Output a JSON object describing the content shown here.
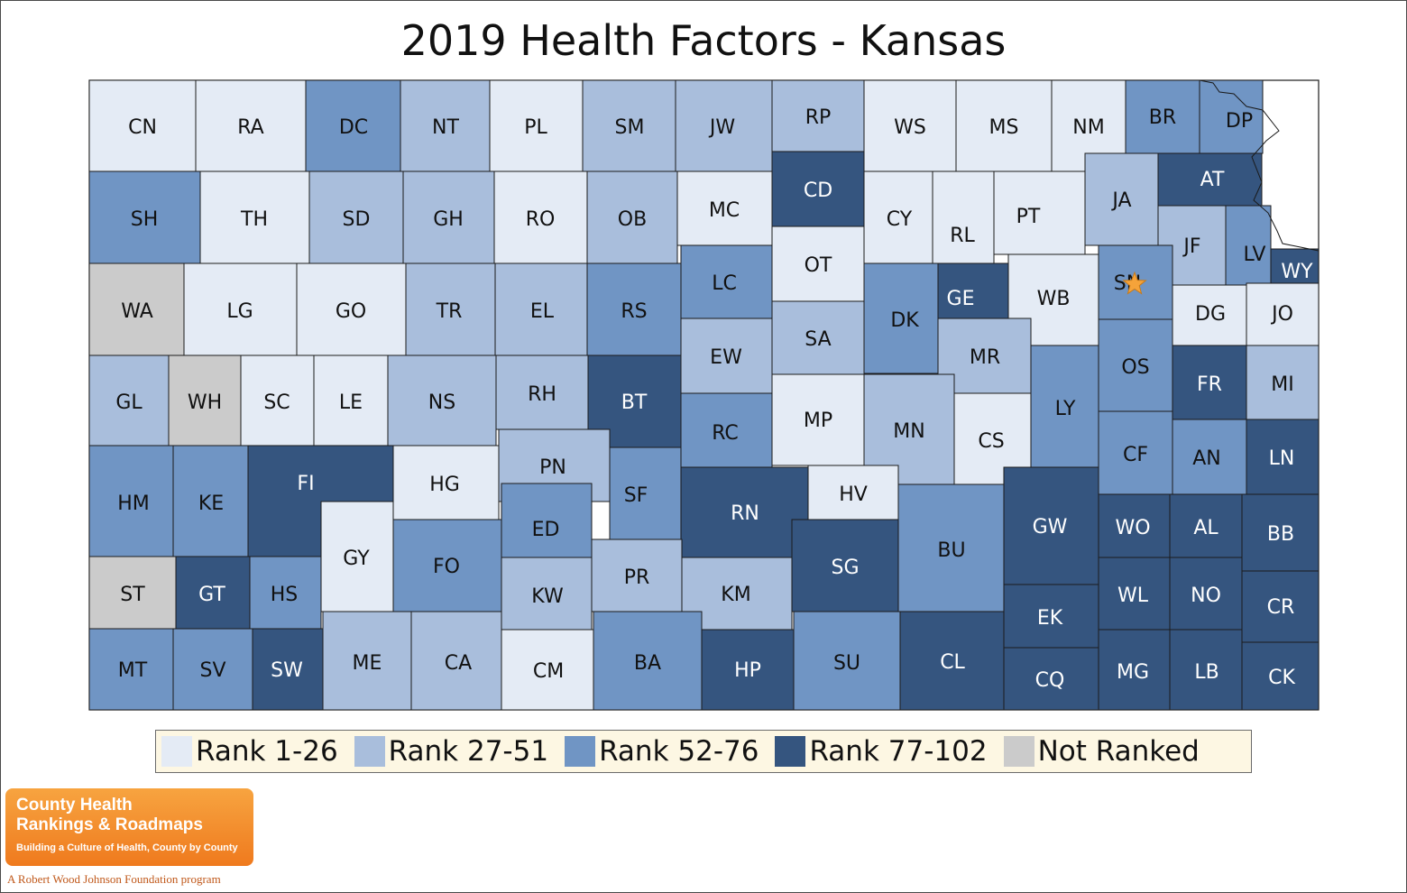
{
  "title": "2019 Health Factors - Kansas",
  "rank_colors": {
    "r1": "#e4ebf5",
    "r2": "#a9bedc",
    "r3": "#7095c4",
    "r4": "#35557f",
    "nr": "#cbcbcb"
  },
  "label_colors": {
    "light": "#111111",
    "dark": "#ffffff"
  },
  "legend": [
    {
      "key": "r1",
      "label": "Rank 1-26"
    },
    {
      "key": "r2",
      "label": "Rank 27-51"
    },
    {
      "key": "r3",
      "label": "Rank 52-76"
    },
    {
      "key": "r4",
      "label": "Rank 77-102"
    },
    {
      "key": "nr",
      "label": "Not Ranked"
    }
  ],
  "capital_marker": {
    "county": "SN",
    "color": "#f5a33a",
    "icon": "star-icon"
  },
  "counties": [
    {
      "id": "CN",
      "rank_group": "r1"
    },
    {
      "id": "RA",
      "rank_group": "r1"
    },
    {
      "id": "DC",
      "rank_group": "r3"
    },
    {
      "id": "NT",
      "rank_group": "r2"
    },
    {
      "id": "PL",
      "rank_group": "r1"
    },
    {
      "id": "SM",
      "rank_group": "r2"
    },
    {
      "id": "JW",
      "rank_group": "r2"
    },
    {
      "id": "RP",
      "rank_group": "r2"
    },
    {
      "id": "WS",
      "rank_group": "r1"
    },
    {
      "id": "MS",
      "rank_group": "r1"
    },
    {
      "id": "NM",
      "rank_group": "r1"
    },
    {
      "id": "BR",
      "rank_group": "r3"
    },
    {
      "id": "DP",
      "rank_group": "r3"
    },
    {
      "id": "SH",
      "rank_group": "r3"
    },
    {
      "id": "TH",
      "rank_group": "r1"
    },
    {
      "id": "SD",
      "rank_group": "r2"
    },
    {
      "id": "GH",
      "rank_group": "r2"
    },
    {
      "id": "RO",
      "rank_group": "r1"
    },
    {
      "id": "OB",
      "rank_group": "r2"
    },
    {
      "id": "MC",
      "rank_group": "r1"
    },
    {
      "id": "CD",
      "rank_group": "r4"
    },
    {
      "id": "CY",
      "rank_group": "r1"
    },
    {
      "id": "RL",
      "rank_group": "r1"
    },
    {
      "id": "PT",
      "rank_group": "r1"
    },
    {
      "id": "JA",
      "rank_group": "r2"
    },
    {
      "id": "AT",
      "rank_group": "r4"
    },
    {
      "id": "JF",
      "rank_group": "r2"
    },
    {
      "id": "LV",
      "rank_group": "r3"
    },
    {
      "id": "WY",
      "rank_group": "r4"
    },
    {
      "id": "WA",
      "rank_group": "nr"
    },
    {
      "id": "LG",
      "rank_group": "r1"
    },
    {
      "id": "GO",
      "rank_group": "r1"
    },
    {
      "id": "TR",
      "rank_group": "r2"
    },
    {
      "id": "EL",
      "rank_group": "r2"
    },
    {
      "id": "RS",
      "rank_group": "r3"
    },
    {
      "id": "LC",
      "rank_group": "r3"
    },
    {
      "id": "OT",
      "rank_group": "r1"
    },
    {
      "id": "DK",
      "rank_group": "r3"
    },
    {
      "id": "GE",
      "rank_group": "r4"
    },
    {
      "id": "WB",
      "rank_group": "r1"
    },
    {
      "id": "SN",
      "rank_group": "r3"
    },
    {
      "id": "DG",
      "rank_group": "r1"
    },
    {
      "id": "JO",
      "rank_group": "r1"
    },
    {
      "id": "GL",
      "rank_group": "r2"
    },
    {
      "id": "WH",
      "rank_group": "nr"
    },
    {
      "id": "SC",
      "rank_group": "r1"
    },
    {
      "id": "LE",
      "rank_group": "r1"
    },
    {
      "id": "NS",
      "rank_group": "r2"
    },
    {
      "id": "RH",
      "rank_group": "r2"
    },
    {
      "id": "BT",
      "rank_group": "r4"
    },
    {
      "id": "EW",
      "rank_group": "r2"
    },
    {
      "id": "SA",
      "rank_group": "r2"
    },
    {
      "id": "MR",
      "rank_group": "r2"
    },
    {
      "id": "OS",
      "rank_group": "r3"
    },
    {
      "id": "FR",
      "rank_group": "r4"
    },
    {
      "id": "MI",
      "rank_group": "r2"
    },
    {
      "id": "RC",
      "rank_group": "r3"
    },
    {
      "id": "MP",
      "rank_group": "r1"
    },
    {
      "id": "MN",
      "rank_group": "r2"
    },
    {
      "id": "LY",
      "rank_group": "r3"
    },
    {
      "id": "CS",
      "rank_group": "r1"
    },
    {
      "id": "CF",
      "rank_group": "r3"
    },
    {
      "id": "AN",
      "rank_group": "r3"
    },
    {
      "id": "LN",
      "rank_group": "r4"
    },
    {
      "id": "HM",
      "rank_group": "r3"
    },
    {
      "id": "KE",
      "rank_group": "r3"
    },
    {
      "id": "FI",
      "rank_group": "r4"
    },
    {
      "id": "HG",
      "rank_group": "r1"
    },
    {
      "id": "PN",
      "rank_group": "r2"
    },
    {
      "id": "SF",
      "rank_group": "r3"
    },
    {
      "id": "ED",
      "rank_group": "r3"
    },
    {
      "id": "RN",
      "rank_group": "r4"
    },
    {
      "id": "HV",
      "rank_group": "r1"
    },
    {
      "id": "BU",
      "rank_group": "r3"
    },
    {
      "id": "GW",
      "rank_group": "r4"
    },
    {
      "id": "WO",
      "rank_group": "r4"
    },
    {
      "id": "AL",
      "rank_group": "r4"
    },
    {
      "id": "BB",
      "rank_group": "r4"
    },
    {
      "id": "GY",
      "rank_group": "r1"
    },
    {
      "id": "FO",
      "rank_group": "r3"
    },
    {
      "id": "ST",
      "rank_group": "nr"
    },
    {
      "id": "GT",
      "rank_group": "r4"
    },
    {
      "id": "HS",
      "rank_group": "r3"
    },
    {
      "id": "KW",
      "rank_group": "r2"
    },
    {
      "id": "PR",
      "rank_group": "r2"
    },
    {
      "id": "KM",
      "rank_group": "r2"
    },
    {
      "id": "SG",
      "rank_group": "r4"
    },
    {
      "id": "EK",
      "rank_group": "r4"
    },
    {
      "id": "WL",
      "rank_group": "r4"
    },
    {
      "id": "NO",
      "rank_group": "r4"
    },
    {
      "id": "CR",
      "rank_group": "r4"
    },
    {
      "id": "MT",
      "rank_group": "r3"
    },
    {
      "id": "SV",
      "rank_group": "r3"
    },
    {
      "id": "SW",
      "rank_group": "r4"
    },
    {
      "id": "ME",
      "rank_group": "r2"
    },
    {
      "id": "CA",
      "rank_group": "r2"
    },
    {
      "id": "CM",
      "rank_group": "r1"
    },
    {
      "id": "BA",
      "rank_group": "r3"
    },
    {
      "id": "HP",
      "rank_group": "r4"
    },
    {
      "id": "SU",
      "rank_group": "r3"
    },
    {
      "id": "CL",
      "rank_group": "r4"
    },
    {
      "id": "CQ",
      "rank_group": "r4"
    },
    {
      "id": "MG",
      "rank_group": "r4"
    },
    {
      "id": "LB",
      "rank_group": "r4"
    },
    {
      "id": "CK",
      "rank_group": "r4"
    }
  ],
  "logo": {
    "line1": "County Health",
    "line2": "Rankings & Roadmaps",
    "tagline": "Building a Culture of Health, County by County",
    "sub": "A Robert Wood Johnson Foundation program"
  }
}
